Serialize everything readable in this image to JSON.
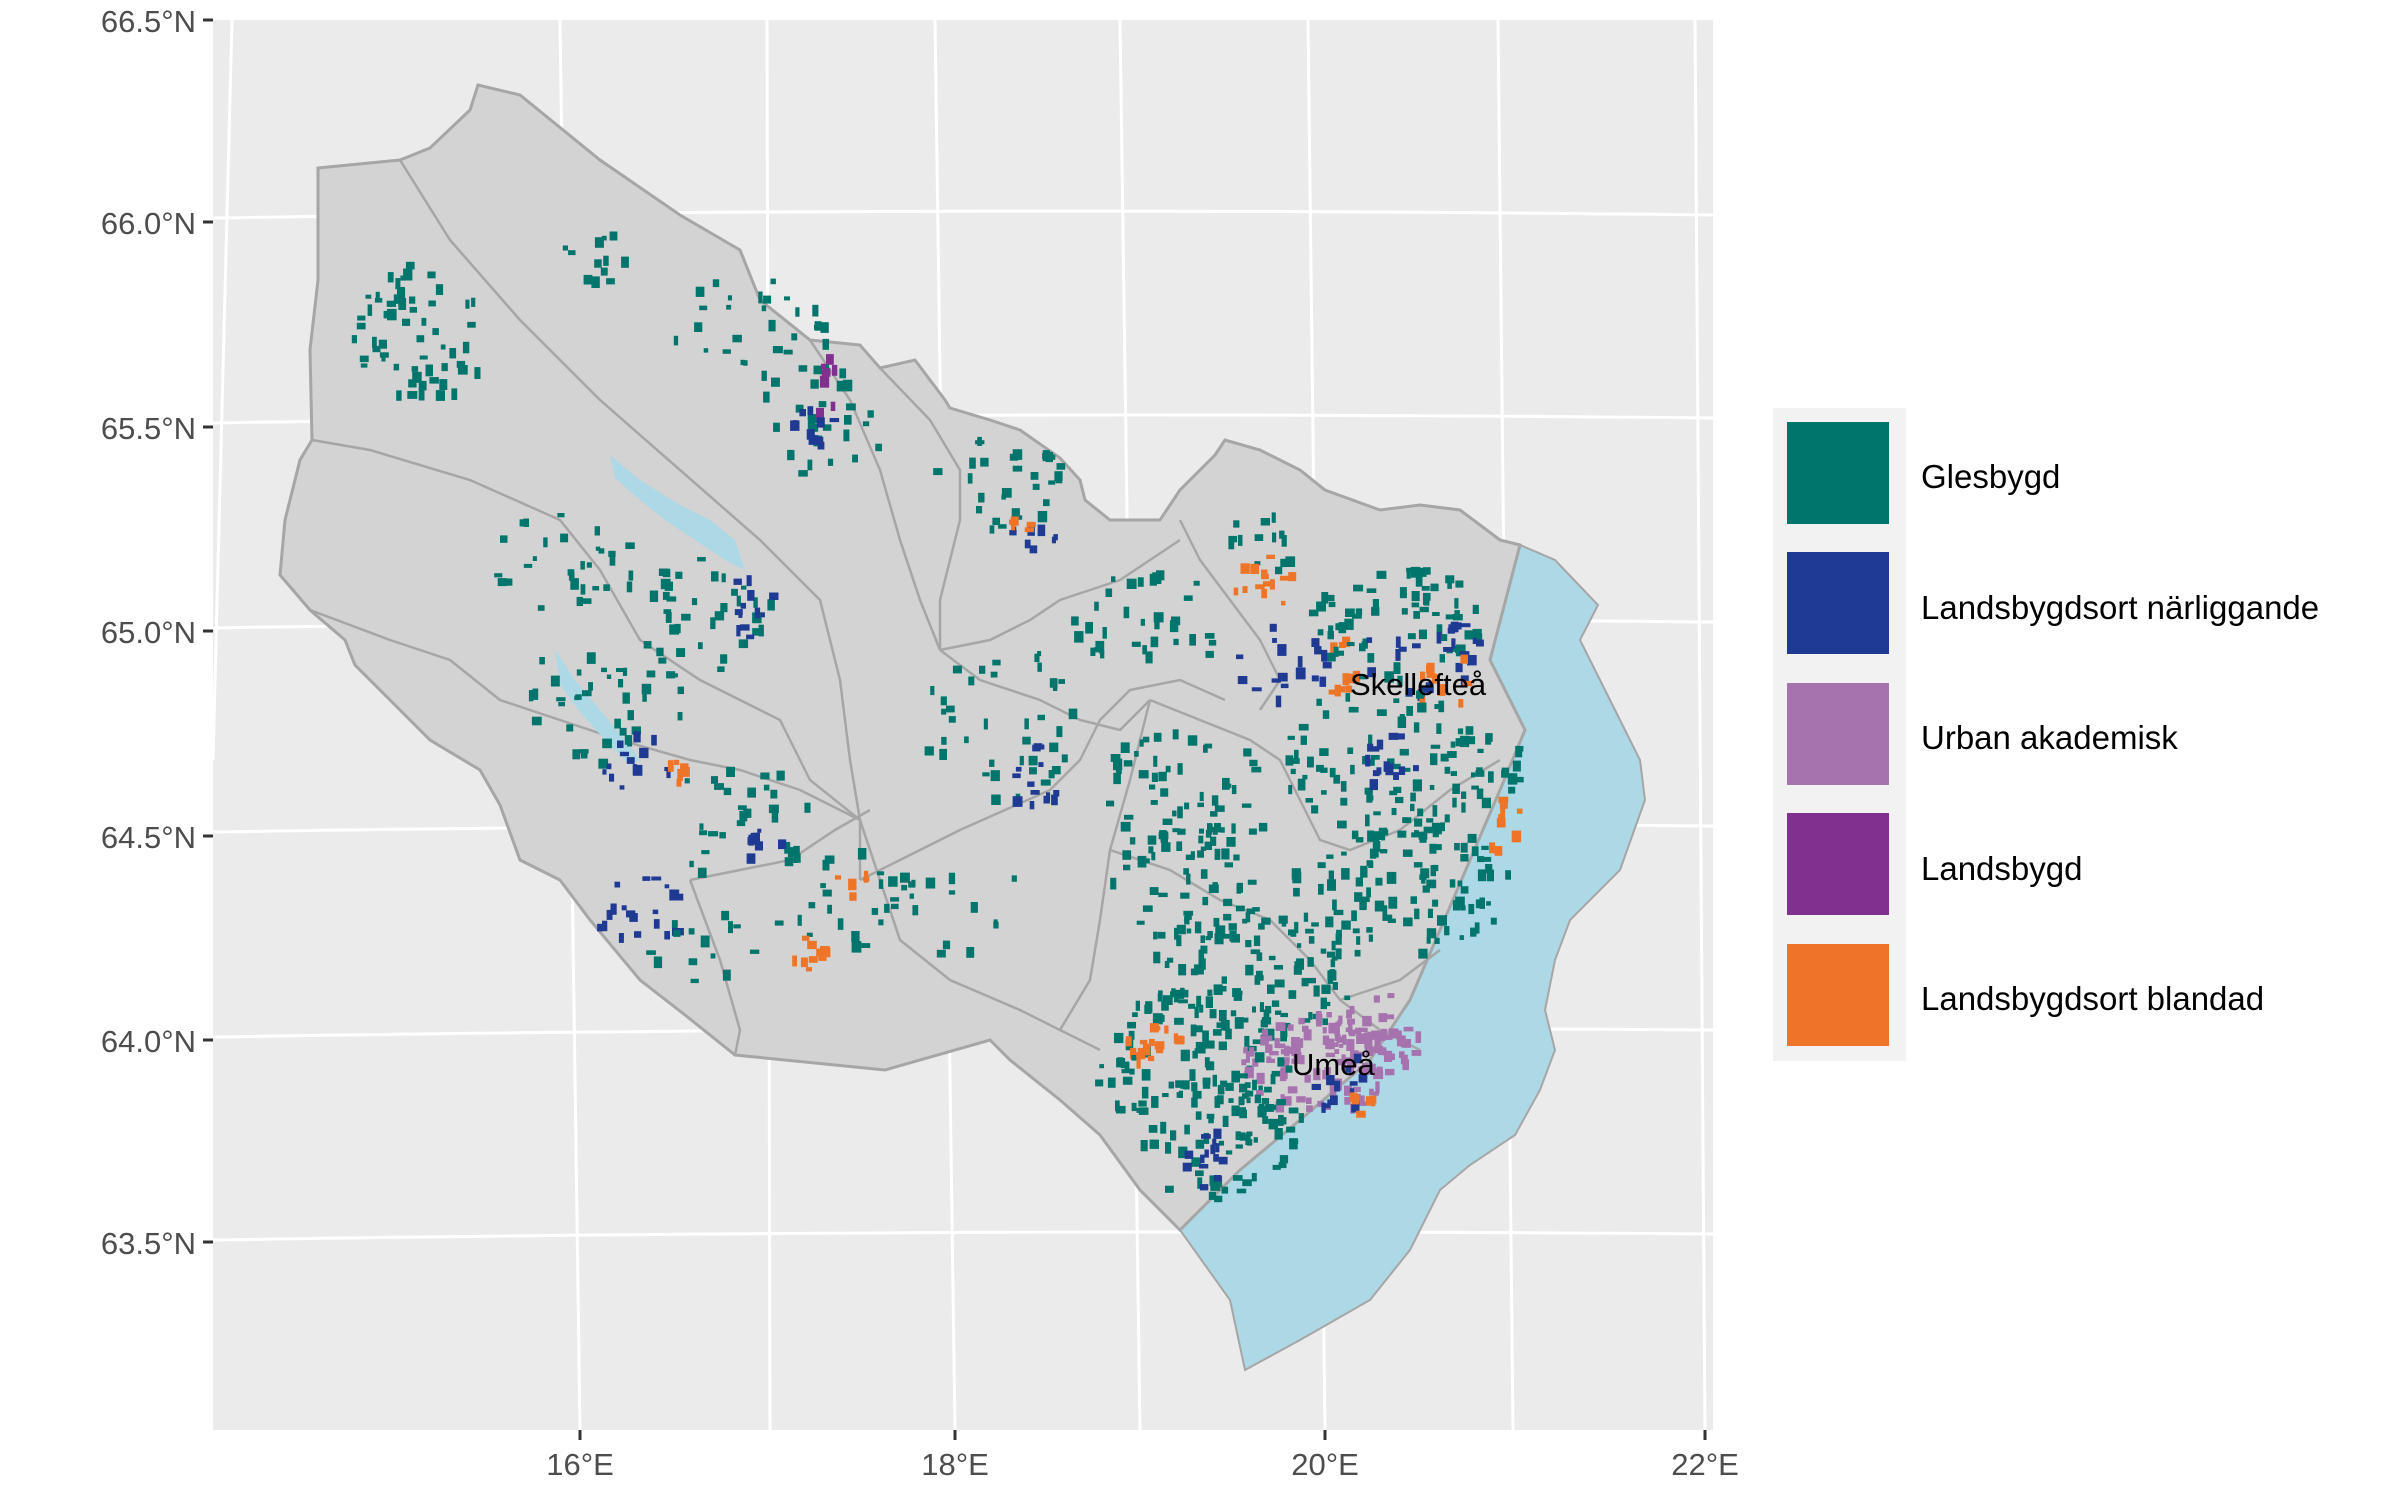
{
  "axes": {
    "y_ticks": [
      "66.5°N",
      "66.0°N",
      "65.5°N",
      "65.0°N",
      "64.5°N",
      "64.0°N",
      "63.5°N"
    ],
    "x_ticks": [
      "16°E",
      "18°E",
      "20°E",
      "22°E"
    ]
  },
  "cities": [
    {
      "name": "Skellefteå"
    },
    {
      "name": "Umeå"
    }
  ],
  "legend": {
    "items": [
      {
        "label": "Glesbygd",
        "color": "#00756B"
      },
      {
        "label": "Landsbygdsort närliggande",
        "color": "#1F3A93"
      },
      {
        "label": "Urban akademisk",
        "color": "#A673AF"
      },
      {
        "label": "Landsbygd",
        "color": "#82308F"
      },
      {
        "label": "Landsbygdsort blandad",
        "color": "#EE7427"
      }
    ]
  },
  "colors": {
    "panel_background": "#EBEBEB",
    "grid": "#FFFFFF",
    "land": "#D3D3D3",
    "border": "#A6A6A6",
    "water": "#ADD8E6"
  },
  "chart_data": {
    "type": "map",
    "title": "",
    "xlabel": "",
    "ylabel": "",
    "xlim": [
      14,
      22
    ],
    "ylim": [
      63,
      66.5
    ],
    "x_ticks": [
      16,
      18,
      20,
      22
    ],
    "y_ticks": [
      66.5,
      66.0,
      65.5,
      65.0,
      64.5,
      64.0,
      63.5
    ],
    "legend_position": "right",
    "categories": [
      "Glesbygd",
      "Landsbygdsort närliggande",
      "Urban akademisk",
      "Landsbygd",
      "Landsbygdsort blandad"
    ],
    "labelled_places": [
      "Skellefteå",
      "Umeå"
    ]
  }
}
